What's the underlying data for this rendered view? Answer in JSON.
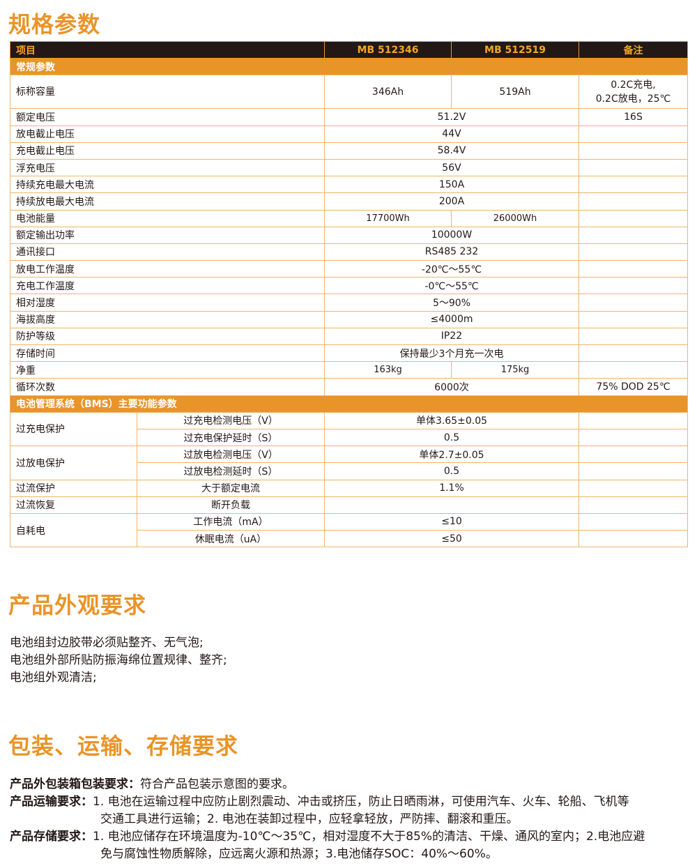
{
  "spec": {
    "title": "规格参数",
    "headers": [
      "项目",
      "MB 512346",
      "MB 512519",
      "备注"
    ],
    "section1": "常规参数",
    "capacity": {
      "label": "标称容量",
      "a": "346Ah",
      "b": "519Ah",
      "note1": "0.2C充电,",
      "note2": "0.2C放电，25℃"
    },
    "rows": [
      {
        "label": "额定电压",
        "value": "51.2V",
        "note": "16S"
      },
      {
        "label": "放电截止电压",
        "value": "44V",
        "note": ""
      },
      {
        "label": "充电截止电压",
        "value": "58.4V",
        "note": ""
      },
      {
        "label": "浮充电压",
        "value": "56V",
        "note": ""
      },
      {
        "label": "持续充电最大电流",
        "value": "150A",
        "note": ""
      },
      {
        "label": "持续放电最大电流",
        "value": "200A",
        "note": ""
      }
    ],
    "energy": {
      "label": "电池能量",
      "a": "17700Wh",
      "b": "26000Wh"
    },
    "rows2": [
      {
        "label": "额定输出功率",
        "value": "10000W",
        "note": ""
      },
      {
        "label": "通讯接口",
        "value": "RS485 232",
        "note": ""
      },
      {
        "label": "放电工作温度",
        "value": "-20℃～55℃",
        "note": ""
      },
      {
        "label": "充电工作温度",
        "value": "-0℃～55℃",
        "note": ""
      },
      {
        "label": "相对湿度",
        "value": "5～90%",
        "note": ""
      },
      {
        "label": "海拔高度",
        "value": "≤4000m",
        "note": ""
      },
      {
        "label": "防护等级",
        "value": "IP22",
        "note": ""
      },
      {
        "label": "存储时间",
        "value": "保持最少3个月充一次电",
        "note": ""
      }
    ],
    "weight": {
      "label": "净重",
      "a": "163kg",
      "b": "175kg"
    },
    "cycle": {
      "label": "循环次数",
      "value": "6000次",
      "note": "75% DOD 25℃"
    },
    "section2": "电池管理系统（BMS）主要功能参数",
    "bms": {
      "overcharge": {
        "label": "过充电保护",
        "r1": "过充电检测电压（V）",
        "v1": "单体3.65±0.05",
        "r2": "过充电保护延时（S）",
        "v2": "0.5"
      },
      "overdischarge": {
        "label": "过放电保护",
        "r1": "过放电检测电压（V）",
        "v1": "单体2.7±0.05",
        "r2": "过放电检测延时（S）",
        "v2": "0.5"
      },
      "overcurrent": {
        "label": "过流保护",
        "r1": "大于额定电流",
        "v1": "1.1%"
      },
      "recovery": {
        "label": "过流恢复",
        "r1": "断开负载",
        "v1": ""
      },
      "selfdrain": {
        "label": "自耗电",
        "r1": "工作电流（mA）",
        "v1": "≤10",
        "r2": "休眠电流（uA）",
        "v2": "≤50"
      }
    }
  },
  "appearance": {
    "title": "产品外观要求",
    "lines": [
      "电池组封边胶带必须贴整齐、无气泡;",
      "电池组外部所贴防振海绵位置规律、整齐;",
      "电池组外观清洁;"
    ]
  },
  "packaging": {
    "title": "包装、运输、存储要求",
    "pack_label": "产品外包装箱包装要求：",
    "pack_text": "符合产品包装示意图的要求。",
    "trans_label": "产品运输要求：",
    "trans_text1": "1. 电池在运输过程中应防止剧烈震动、冲击或挤压，防止日晒雨淋，可使用汽车、火车、轮船、飞机等",
    "trans_text2": "交通工具进行运输；2. 电池在装卸过程中，应轻拿轻放，严防摔、翻滚和重压。",
    "store_label": "产品存储要求：",
    "store_text1": "1. 电池应储存在环境温度为-10℃～35℃，相对湿度不大于85%的清洁、干燥、通风的室内；2.电池应避",
    "store_text2": "免与腐蚀性物质解除，应远离火源和热源；3.电池储存SOC：40%～60%。"
  }
}
